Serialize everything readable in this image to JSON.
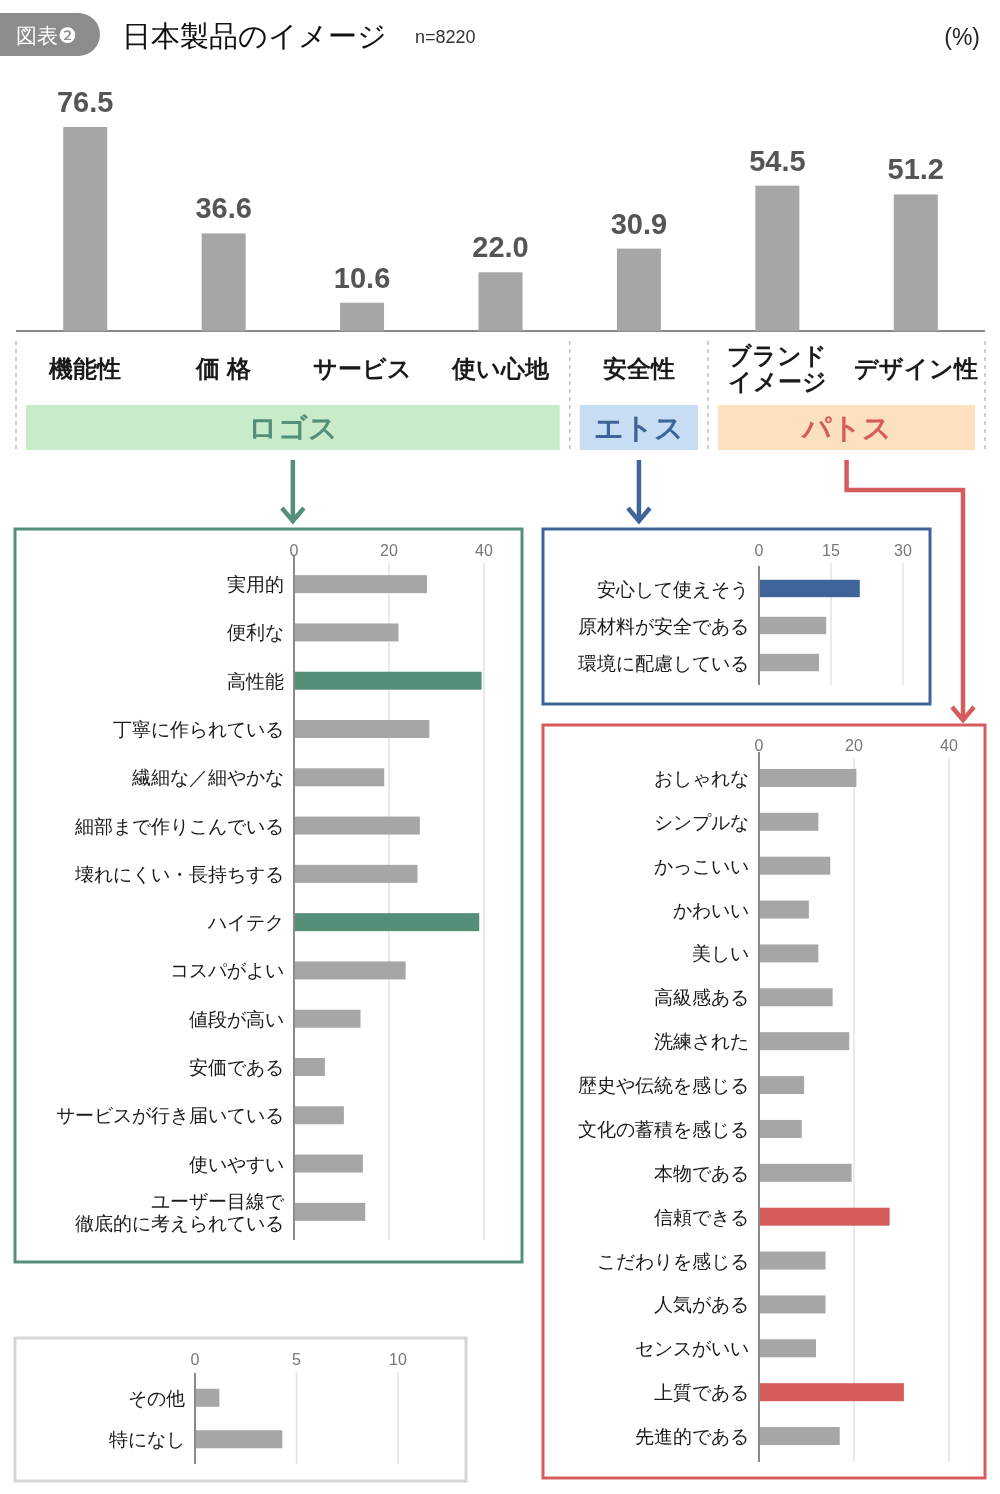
{
  "chart_data": [
    {
      "type": "bar",
      "title": "日本製品のイメージ",
      "subtitle": "n=8220",
      "annotations": [
        "図表❷",
        "(%)",
        "ロゴス",
        "エトス",
        "パトス"
      ],
      "categories": [
        "機能性",
        "価 格",
        "サービス",
        "使い心地",
        "安全性",
        "ブランドイメージ",
        "デザイン性"
      ],
      "values": [
        76.5,
        36.6,
        10.6,
        22.0,
        30.9,
        54.5,
        51.2
      ],
      "value_labels": [
        "76.5",
        "36.6",
        "10.6",
        "22.0",
        "30.9",
        "54.5",
        "51.2"
      ],
      "color": "#a6a6a6"
    },
    {
      "type": "bar",
      "orientation": "horizontal",
      "categories": [
        "実用的",
        "便利な",
        "高性能",
        "丁寧に作られている",
        "繊細な／細やかな",
        "細部まで作りこんでいる",
        "壊れにくい・長持ちする",
        "ハイテク",
        "コスパがよい",
        "値段が高い",
        "安価である",
        "サービスが行き届いている",
        "使いやすい",
        "ユーザー目線で徹底的に考えられている"
      ],
      "values": [
        28,
        22,
        39.5,
        28.5,
        19,
        26.5,
        26,
        39,
        23.5,
        14,
        6.5,
        10.5,
        14.5,
        15
      ],
      "colors": [
        "#a6a6a6",
        "#a6a6a6",
        "#558f78",
        "#a6a6a6",
        "#a6a6a6",
        "#a6a6a6",
        "#a6a6a6",
        "#558f78",
        "#a6a6a6",
        "#a6a6a6",
        "#a6a6a6",
        "#a6a6a6",
        "#a6a6a6",
        "#a6a6a6"
      ],
      "xlim": [
        0,
        40
      ],
      "xticks": [
        0,
        20,
        40
      ],
      "grid": "x"
    },
    {
      "type": "bar",
      "orientation": "horizontal",
      "categories": [
        "安心して使えそう",
        "原材料が安全である",
        "環境に配慮している"
      ],
      "values": [
        21,
        14,
        12.5
      ],
      "colors": [
        "#3f6499",
        "#a6a6a6",
        "#a6a6a6"
      ],
      "xlim": [
        0,
        30
      ],
      "xticks": [
        0,
        15,
        30
      ],
      "grid": "x"
    },
    {
      "type": "bar",
      "orientation": "horizontal",
      "categories": [
        "おしゃれな",
        "シンプルな",
        "かっこいい",
        "かわいい",
        "美しい",
        "高級感ある",
        "洗練された",
        "歴史や伝統を感じる",
        "文化の蓄積を感じる",
        "本物である",
        "信頼できる",
        "こだわりを感じる",
        "人気がある",
        "センスがいい",
        "上質である",
        "先進的である"
      ],
      "values": [
        20.5,
        12.5,
        15,
        10.5,
        12.5,
        15.5,
        19,
        9.5,
        9,
        19.5,
        27.5,
        14,
        14,
        12,
        30.5,
        17
      ],
      "colors": [
        "#a6a6a6",
        "#a6a6a6",
        "#a6a6a6",
        "#a6a6a6",
        "#a6a6a6",
        "#a6a6a6",
        "#a6a6a6",
        "#a6a6a6",
        "#a6a6a6",
        "#a6a6a6",
        "#d65b5c",
        "#a6a6a6",
        "#a6a6a6",
        "#a6a6a6",
        "#d65b5c",
        "#a6a6a6"
      ],
      "xlim": [
        0,
        40
      ],
      "xticks": [
        0,
        20,
        40
      ],
      "grid": "x"
    },
    {
      "type": "bar",
      "orientation": "horizontal",
      "categories": [
        "その他",
        "特になし"
      ],
      "values": [
        1.2,
        4.3
      ],
      "colors": [
        "#a6a6a6",
        "#a6a6a6"
      ],
      "xlim": [
        0,
        10
      ],
      "xticks": [
        0,
        5,
        10
      ],
      "grid": "x"
    }
  ]
}
